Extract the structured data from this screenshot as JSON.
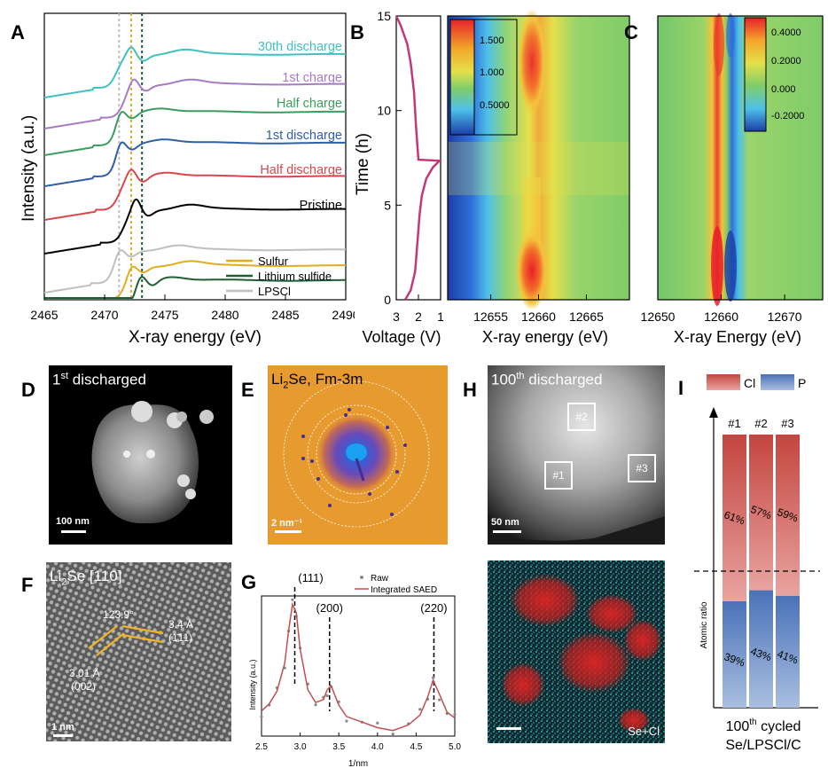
{
  "panels": {
    "A": {
      "letter": "A",
      "ylabel": "Intensity (a.u.)",
      "xlabel": "X-ray energy (eV)",
      "ticks": [
        "2465",
        "2470",
        "2475",
        "2480",
        "2485",
        "2490"
      ],
      "labels": [
        "30th discharge",
        "1st charge",
        "Half charge",
        "1st discharge",
        "Half discharge",
        "Pristine"
      ],
      "legend": [
        "Sulfur",
        "Lithium sulfide",
        "LPSCl"
      ]
    },
    "B": {
      "letter": "B",
      "ylabel": "Time (h)",
      "xlabel_voltage": "Voltage (V)",
      "xlabel_energy": "X-ray energy (eV)",
      "voltage_ticks": [
        "3",
        "2",
        "1"
      ],
      "time_ticks": [
        "0",
        "5",
        "10",
        "15"
      ],
      "energy_ticks": [
        "12655",
        "12660",
        "12665"
      ],
      "colorbar": [
        "1.500",
        "1.000",
        "0.5000"
      ]
    },
    "C": {
      "letter": "C",
      "xlabel": "X-ray Energy (eV)",
      "energy_ticks": [
        "12650",
        "12660",
        "12670"
      ],
      "colorbar": [
        "0.4000",
        "0.2000",
        "0.000",
        "-0.2000"
      ]
    },
    "D": {
      "letter": "D",
      "title_pre": "1",
      "title_sup": "st",
      "title_post": " discharged",
      "scale": "100 nm"
    },
    "E": {
      "letter": "E",
      "title_pre": "Li",
      "title_sub": "2",
      "title_post": "Se, Fm-3m",
      "scale": "2 nm⁻¹"
    },
    "H": {
      "letter": "H",
      "title_pre": "100",
      "title_sup": "th",
      "title_post": " discharged",
      "scale": "50 nm",
      "boxes": [
        "#2",
        "#1",
        "#3"
      ],
      "map_label": "Se+Cl"
    },
    "I": {
      "letter": "I",
      "legend": [
        "Cl",
        "P"
      ],
      "ylabel": "Atomic ratio",
      "bars": [
        "#1",
        "#2",
        "#3"
      ],
      "xlabel_pre": "100",
      "xlabel_sup": "th",
      "xlabel_post": " cycled",
      "xlabel2": "Se/LPSCl/C"
    },
    "F": {
      "letter": "F",
      "title_pre": "Li",
      "title_sub": "2",
      "title_post": "Se [110]",
      "angle": "123.9°",
      "d1": "3.4 Å",
      "hkl1": "(1̄11)",
      "d2": "3.01 Å",
      "hkl2": "(002)",
      "scale": "1 nm"
    },
    "G": {
      "letter": "G",
      "ylabel": "Intensity (a.u.)",
      "xlabel": "1/nm",
      "ticks": [
        "2.5",
        "3.0",
        "3.5",
        "4.0",
        "4.5",
        "5.0"
      ],
      "legend": [
        "Raw",
        "Integrated SAED"
      ],
      "peaks": [
        "(111)",
        "(200)",
        "(220)"
      ]
    }
  },
  "chart_data": [
    {
      "type": "line",
      "panel": "A",
      "xlabel": "X-ray energy (eV)",
      "ylabel": "Intensity (a.u.)",
      "xlim": [
        2465,
        2490
      ],
      "reference_lines_eV": [
        2471.2,
        2472.2,
        2473.1
      ],
      "series": [
        {
          "name": "30th discharge",
          "color": "#3fc1c0"
        },
        {
          "name": "1st charge",
          "color": "#a77bc1"
        },
        {
          "name": "Half charge",
          "color": "#3a9d5d"
        },
        {
          "name": "1st discharge",
          "color": "#2f5fa8"
        },
        {
          "name": "Half discharge",
          "color": "#d9474b"
        },
        {
          "name": "Pristine",
          "color": "#000000"
        },
        {
          "name": "Sulfur",
          "color": "#e1ad20"
        },
        {
          "name": "Lithium sulfide",
          "color": "#1f5e32"
        },
        {
          "name": "LPSCl",
          "color": "#bfbfbf"
        }
      ]
    },
    {
      "type": "line",
      "panel": "B",
      "xlabel": "Voltage (V)",
      "ylabel": "Time (h)",
      "xlim": [
        3,
        1
      ],
      "ylim": [
        0,
        15
      ],
      "x": [
        2.6,
        2.35,
        2.15,
        2.05,
        1.95,
        1.85,
        1.65,
        1.35,
        1.05,
        1.05,
        2.0,
        2.1,
        2.2,
        2.35,
        2.5,
        2.8,
        3.0
      ],
      "y": [
        0,
        0.5,
        1.5,
        3,
        4.5,
        5.5,
        6.4,
        7.0,
        7.35,
        7.35,
        7.4,
        9,
        11,
        12.5,
        13.5,
        14.5,
        15
      ]
    },
    {
      "type": "heatmap",
      "panel": "B",
      "xlabel": "X-ray energy (eV)",
      "colorbar_ticks": [
        1.5,
        1.0,
        0.5
      ]
    },
    {
      "type": "heatmap",
      "panel": "C",
      "xlabel": "X-ray Energy (eV)",
      "colorbar_ticks": [
        0.4,
        0.2,
        0.0,
        -0.2
      ]
    },
    {
      "type": "line",
      "panel": "G",
      "xlabel": "1/nm",
      "ylabel": "Intensity (a.u.)",
      "xlim": [
        2.5,
        5.0
      ],
      "series": [
        {
          "name": "Integrated SAED",
          "color": "#c0504d",
          "x": [
            2.5,
            2.6,
            2.7,
            2.8,
            2.85,
            2.9,
            2.95,
            3.0,
            3.1,
            3.2,
            3.3,
            3.35,
            3.4,
            3.5,
            3.6,
            3.8,
            4.0,
            4.2,
            4.4,
            4.55,
            4.65,
            4.72,
            4.8,
            4.9,
            5.0
          ],
          "y": [
            0.18,
            0.23,
            0.32,
            0.52,
            0.75,
            0.94,
            0.88,
            0.62,
            0.33,
            0.24,
            0.26,
            0.33,
            0.36,
            0.22,
            0.14,
            0.1,
            0.06,
            0.04,
            0.08,
            0.15,
            0.28,
            0.4,
            0.3,
            0.17,
            0.13
          ]
        }
      ],
      "peaks": [
        {
          "label": "(111)",
          "x": 2.93
        },
        {
          "label": "(200)",
          "x": 3.38
        },
        {
          "label": "(220)",
          "x": 4.73
        }
      ]
    },
    {
      "type": "bar",
      "panel": "I",
      "categories": [
        "#1",
        "#2",
        "#3"
      ],
      "series": [
        {
          "name": "P",
          "values": [
            39,
            43,
            41
          ],
          "color": "#5b7fbf"
        },
        {
          "name": "Cl",
          "values": [
            61,
            57,
            59
          ],
          "color": "#c4453f"
        }
      ],
      "ylabel": "Atomic ratio",
      "dashed_line_at": 50
    }
  ]
}
